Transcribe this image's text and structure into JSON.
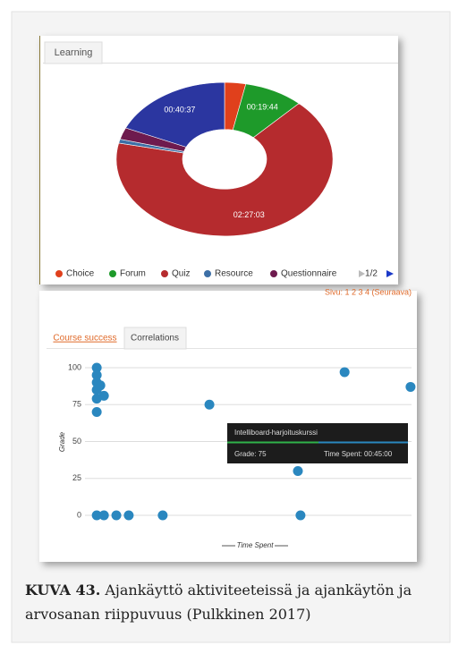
{
  "tabs_top": [
    "Learning"
  ],
  "tabs_bottom": [
    "Course success",
    "Correlations"
  ],
  "legend_pager": "1/2",
  "pagination": "Sivu: 1 2 3 4 (Seuraava)",
  "tooltip": {
    "title": "Intelliboard-harjoituskurssi",
    "grade": "Grade: 75",
    "time": "Time Spent: 00:45:00"
  },
  "caption": {
    "label": "KUVA 43.",
    "text": "Ajankäyttö aktiviteeteissä ja ajankäytön ja arvosanan riippuvuus (Pulkkinen 2017)"
  },
  "chart_data": [
    {
      "type": "donut",
      "categories": [
        "Choice",
        "Forum",
        "Quiz",
        "Resource",
        "Questionnaire",
        null
      ],
      "values": [
        420,
        1184,
        8823,
        110,
        330,
        2437
      ],
      "value_labels": [
        null,
        "00:19:44",
        "02:27:03",
        null,
        null,
        "00:40:37"
      ],
      "colors": [
        "#e0401c",
        "#1e9a2a",
        "#b52b2e",
        "#3d6fa6",
        "#6e1a4e",
        "#2b36a0"
      ],
      "legend": true
    },
    {
      "type": "scatter",
      "xlabel": "Time Spent",
      "ylabel": "Grade",
      "color": "#2a87bf",
      "xlim": [
        0,
        100
      ],
      "ylim": [
        0,
        100
      ],
      "yticks": [
        0,
        25,
        50,
        75,
        100
      ],
      "grid": true,
      "x": [
        3.6,
        3.6,
        3.6,
        3.6,
        4.7,
        5.8,
        3.6,
        3.6,
        38.1,
        79.5,
        99.7,
        65.2,
        3.6,
        5.8,
        9.6,
        13.4,
        23.8,
        66
      ],
      "values": [
        100,
        95,
        90,
        85,
        88,
        81,
        79,
        70,
        75,
        97,
        87,
        30,
        0,
        0,
        0,
        0,
        0,
        0
      ]
    }
  ]
}
